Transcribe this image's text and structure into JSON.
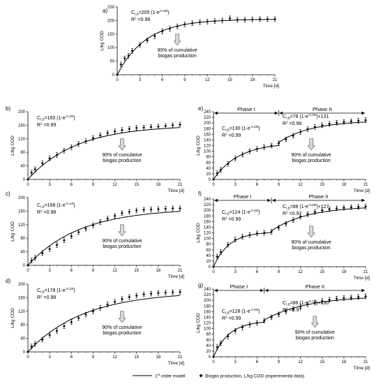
{
  "chart_data": [
    {
      "id": "a",
      "panel_label": "a)",
      "type": "scatter",
      "xlabel": "Time [d]",
      "ylabel": "L/kg COD",
      "xlim": [
        0,
        21
      ],
      "ylim": [
        0,
        250
      ],
      "xticks": [
        "0",
        "3",
        "6",
        "9",
        "12",
        "15",
        "18",
        "21"
      ],
      "yticks": [
        "0",
        "50",
        "100",
        "150",
        "200",
        "250"
      ],
      "equations": [
        {
          "text": "C(t,B)=205 (1-e^(-0.26t))",
          "C": 205,
          "k": 0.26,
          "offset": 0,
          "t0": 0
        }
      ],
      "r2": [
        "R² =0.98"
      ],
      "phases": [],
      "note": [
        "90% of cumulative",
        "biogas production"
      ],
      "note_x": 8,
      "x": [
        0,
        0.5,
        1,
        1.5,
        2,
        3,
        4,
        5,
        6,
        7,
        8,
        9,
        10,
        11,
        12,
        13,
        14,
        15,
        16,
        17,
        18,
        19,
        20,
        21
      ],
      "y": [
        0,
        38,
        60,
        70,
        88,
        110,
        127,
        142,
        160,
        170,
        178,
        186,
        190,
        194,
        196,
        198,
        200,
        208,
        203,
        203,
        204,
        205,
        205,
        205
      ]
    },
    {
      "id": "b",
      "panel_label": "b)",
      "type": "scatter",
      "xlabel": "Time [d]",
      "ylabel": "L/kg COD",
      "xlim": [
        0,
        21
      ],
      "ylim": [
        0,
        200
      ],
      "xticks": [
        "0",
        "3",
        "6",
        "9",
        "12",
        "15",
        "18",
        "21"
      ],
      "yticks": [
        "0",
        "40",
        "80",
        "120",
        "160",
        "200"
      ],
      "equations": [
        {
          "text": "C(t,B)=160 (1-e^(-0.15t))",
          "C": 160,
          "k": 0.15,
          "offset": 0,
          "t0": 0
        }
      ],
      "r2": [
        "R² =0.99"
      ],
      "phases": [],
      "note": [
        "90% of cumulative",
        "biogas production"
      ],
      "note_x": 13,
      "x": [
        0,
        0.5,
        1,
        2,
        3,
        4,
        5,
        6,
        7,
        8,
        9,
        10,
        11,
        12,
        13,
        14,
        15,
        16,
        17,
        18,
        19,
        20,
        21
      ],
      "y": [
        0,
        20,
        30,
        48,
        62,
        72,
        85,
        95,
        105,
        113,
        122,
        130,
        137,
        142,
        146,
        149,
        152,
        153,
        155,
        156,
        158,
        160,
        162
      ]
    },
    {
      "id": "c",
      "panel_label": "c)",
      "type": "scatter",
      "xlabel": "Time [d]",
      "ylabel": "L/kg COD",
      "xlim": [
        0,
        21
      ],
      "ylim": [
        0,
        200
      ],
      "xticks": [
        "0",
        "3",
        "6",
        "9",
        "12",
        "15",
        "18",
        "21"
      ],
      "yticks": [
        "0",
        "40",
        "80",
        "120",
        "160",
        "200"
      ],
      "equations": [
        {
          "text": "C(t,B)=168 (1-e^(-0.14t))",
          "C": 168,
          "k": 0.14,
          "offset": 0,
          "t0": 0
        }
      ],
      "r2": [
        "R² =0.98"
      ],
      "phases": [],
      "note": [
        "90% of cumulative",
        "biogas production"
      ],
      "note_x": 13,
      "x": [
        0,
        0.5,
        1,
        2,
        3,
        4,
        5,
        6,
        7,
        8,
        9,
        10,
        11,
        12,
        13,
        14,
        15,
        16,
        17,
        18,
        19,
        20,
        21
      ],
      "y": [
        0,
        14,
        22,
        36,
        48,
        60,
        74,
        86,
        98,
        108,
        118,
        128,
        138,
        146,
        154,
        158,
        162,
        164,
        165,
        166,
        167,
        168,
        168
      ]
    },
    {
      "id": "d",
      "panel_label": "d)",
      "type": "scatter",
      "xlabel": "Time [d]",
      "ylabel": "L/kg COD",
      "xlim": [
        0,
        21
      ],
      "ylim": [
        0,
        200
      ],
      "xticks": [
        "0",
        "3",
        "6",
        "9",
        "12",
        "15",
        "18",
        "21"
      ],
      "yticks": [
        "0",
        "40",
        "80",
        "120",
        "160",
        "200"
      ],
      "equations": [
        {
          "text": "C(t,B)=178 (1-e^(-0.13t))",
          "C": 178,
          "k": 0.13,
          "offset": 0,
          "t0": 0
        }
      ],
      "r2": [
        "R² =0.98"
      ],
      "phases": [],
      "note": [
        "90% of cumulative",
        "biogas production"
      ],
      "note_x": 13,
      "x": [
        0,
        0.5,
        1,
        2,
        3,
        4,
        5,
        6,
        7,
        8,
        9,
        10,
        11,
        12,
        13,
        14,
        15,
        16,
        17,
        18,
        19,
        20,
        21
      ],
      "y": [
        0,
        16,
        24,
        36,
        50,
        62,
        76,
        88,
        100,
        110,
        120,
        130,
        140,
        148,
        156,
        162,
        166,
        170,
        172,
        174,
        175,
        176,
        177
      ]
    },
    {
      "id": "e",
      "panel_label": "e)",
      "type": "scatter",
      "xlabel": "Time [d]",
      "ylabel": "L/kg COD",
      "xlim": [
        0,
        21
      ],
      "ylim": [
        0,
        240
      ],
      "xticks": [
        "0",
        "3",
        "6",
        "9",
        "12",
        "15",
        "18",
        "21"
      ],
      "yticks": [
        "0",
        "20",
        "40",
        "60",
        "80",
        "100",
        "120",
        "140",
        "160",
        "180",
        "200",
        "220",
        "240"
      ],
      "equations": [
        {
          "text": "C(t,B)=130 (1-e^(-0.29t))",
          "C": 130,
          "k": 0.29,
          "offset": 0,
          "t0": 0
        },
        {
          "text": "C(t,B)=78 (1-e^(-0.22t))+131",
          "C": 78,
          "k": 0.22,
          "offset": 131,
          "t0": 9
        }
      ],
      "r2": [
        "R² =0.99",
        "R² =0.98"
      ],
      "phases": [
        {
          "label": "Phase I",
          "x0": 0,
          "x1": 9
        },
        {
          "label": "Phase II",
          "x0": 9,
          "x1": 21
        }
      ],
      "note": [
        "90% of cumulative",
        "biogas production"
      ],
      "note_x": 13.5,
      "x": [
        0,
        0.5,
        1,
        2,
        3,
        4,
        5,
        6,
        7,
        8,
        9,
        10,
        11,
        12,
        13,
        14,
        15,
        16,
        17,
        18,
        19,
        20,
        21
      ],
      "y": [
        0,
        22,
        34,
        55,
        74,
        88,
        100,
        108,
        114,
        120,
        128,
        142,
        155,
        168,
        178,
        186,
        192,
        197,
        201,
        204,
        206,
        208,
        210
      ]
    },
    {
      "id": "f",
      "panel_label": "f)",
      "type": "scatter",
      "xlabel": "Time [d]",
      "ylabel": "L/kg COD",
      "xlim": [
        0,
        21
      ],
      "ylim": [
        0,
        240
      ],
      "xticks": [
        "0",
        "3",
        "6",
        "9",
        "12",
        "15",
        "18",
        "21"
      ],
      "yticks": [
        "0",
        "20",
        "40",
        "60",
        "80",
        "100",
        "120",
        "140",
        "160",
        "180",
        "200",
        "220",
        "240"
      ],
      "equations": [
        {
          "text": "C(t,B)=124 (1-e^(-0.46t))",
          "C": 124,
          "k": 0.46,
          "offset": 0,
          "t0": 0
        },
        {
          "text": "C(t,B)=88 (1-e^(-0.20t))+127",
          "C": 88,
          "k": 0.2,
          "offset": 127,
          "t0": 8
        }
      ],
      "r2": [
        "R² =0.99",
        "R² =0.97"
      ],
      "phases": [
        {
          "label": "Phase I",
          "x0": 0,
          "x1": 8
        },
        {
          "label": "Phase II",
          "x0": 8,
          "x1": 21
        }
      ],
      "note": [
        "90% of cumulative",
        "biogas production"
      ],
      "note_x": 13.5,
      "x": [
        0,
        0.5,
        1,
        2,
        3,
        4,
        5,
        6,
        7,
        8,
        9,
        10,
        11,
        12,
        13,
        14,
        15,
        16,
        17,
        18,
        19,
        20,
        21
      ],
      "y": [
        0,
        36,
        52,
        78,
        96,
        106,
        112,
        118,
        120,
        124,
        138,
        152,
        165,
        178,
        186,
        194,
        200,
        204,
        207,
        209,
        211,
        212,
        213
      ]
    },
    {
      "id": "g",
      "panel_label": "g)",
      "type": "scatter",
      "xlabel": "Time [d]",
      "ylabel": "L/kg COD",
      "xlim": [
        0,
        21
      ],
      "ylim": [
        0,
        240
      ],
      "xticks": [
        "0",
        "3",
        "6",
        "9",
        "12",
        "15",
        "18",
        "21"
      ],
      "yticks": [
        "0",
        "20",
        "40",
        "60",
        "80",
        "100",
        "120",
        "140",
        "160",
        "180",
        "200",
        "220",
        "240"
      ],
      "equations": [
        {
          "text": "C(t,B)=128 (1-e^(-0.46t))",
          "C": 128,
          "k": 0.46,
          "offset": 0,
          "t0": 0
        },
        {
          "text": "C(t,B)=86 (1-e^(-0.17t))+130",
          "C": 86,
          "k": 0.17,
          "offset": 130,
          "t0": 7
        }
      ],
      "r2": [
        "R² =0.99",
        "R² =0.97"
      ],
      "phases": [
        {
          "label": "Phase I",
          "x0": 0,
          "x1": 7
        },
        {
          "label": "Phase II",
          "x0": 7,
          "x1": 21
        }
      ],
      "note": [
        "90% of cumulative",
        "biogas production"
      ],
      "note_x": 14,
      "x": [
        0,
        0.5,
        1,
        2,
        3,
        4,
        5,
        6,
        7,
        8,
        9,
        10,
        11,
        12,
        13,
        14,
        15,
        16,
        17,
        18,
        19,
        20,
        21
      ],
      "y": [
        0,
        34,
        48,
        72,
        92,
        104,
        114,
        120,
        128,
        140,
        150,
        160,
        170,
        178,
        186,
        192,
        198,
        202,
        206,
        208,
        210,
        212,
        214
      ]
    }
  ],
  "legend": {
    "line_label": "1st order model",
    "marker_label": "Biogas production, L/kg COD (experimental data)"
  }
}
